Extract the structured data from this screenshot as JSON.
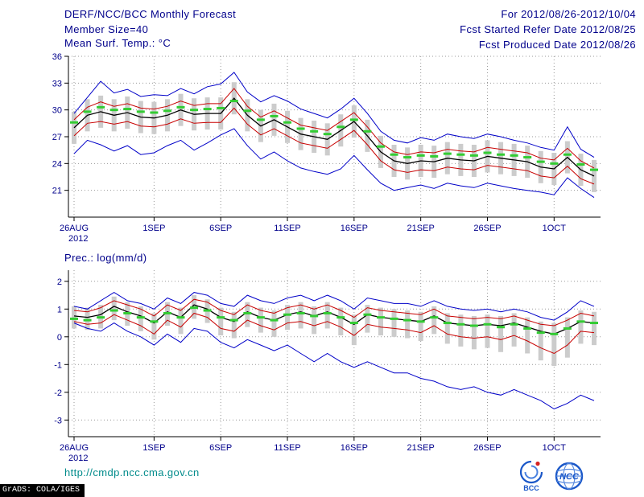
{
  "header": {
    "title": "DERF/NCC/BCC Monthly Forecast",
    "member_size": "Member Size=40",
    "for_range": "For 2012/08/26-2012/10/04",
    "fcst_started": "Fcst Started Refer Date 2012/08/25",
    "fcst_produced": "Fcst Produced Date 2012/08/26"
  },
  "footer": {
    "url": "http://cmdp.ncc.cma.gov.cn",
    "grads_credit": "GrADS: COLA/IGES",
    "logos": [
      {
        "label": "BCC"
      },
      {
        "label": "NCC"
      }
    ]
  },
  "colors": {
    "header_text": "#00008B",
    "tick_text": "#00008B",
    "url_text": "#008B8B",
    "envelope_line": "#0000C8",
    "std_line": "#C80000",
    "mean_line": "#000000",
    "climatology_dash": "#33CC33",
    "spread_bar": "#CCCCCC",
    "grid": "#999999",
    "axis": "#000000"
  },
  "chart_data": [
    {
      "type": "line",
      "title": "Mean Surf. Temp.: °C",
      "n_points": 40,
      "x_tick_labels": [
        "26AUG",
        "1SEP",
        "6SEP",
        "11SEP",
        "16SEP",
        "21SEP",
        "26SEP",
        "1OCT"
      ],
      "x_tick_indices": [
        0,
        6,
        11,
        16,
        21,
        26,
        31,
        36
      ],
      "x_year_label": "2012",
      "y_ticks": [
        36,
        33,
        30,
        27,
        24,
        21
      ],
      "ylim": [
        18,
        36
      ],
      "grid": true,
      "series": [
        {
          "name": "ensemble-max",
          "color": "#0000C8",
          "width": 1,
          "values": [
            29.6,
            31.4,
            33.2,
            31.9,
            32.3,
            31.5,
            31.7,
            31.6,
            32.4,
            31.8,
            32.6,
            32.9,
            34.2,
            32.0,
            30.9,
            31.6,
            31.0,
            30.1,
            29.6,
            29.1,
            30.1,
            31.3,
            29.6,
            27.6,
            26.6,
            26.3,
            26.9,
            26.6,
            27.3,
            27.0,
            26.8,
            27.3,
            27.0,
            26.6,
            26.3,
            25.8,
            25.5,
            28.1,
            25.6,
            24.7
          ]
        },
        {
          "name": "upper-std",
          "color": "#C80000",
          "width": 1,
          "values": [
            28.9,
            30.3,
            30.9,
            30.4,
            30.7,
            30.2,
            30.1,
            30.4,
            31.0,
            30.5,
            30.7,
            30.7,
            32.4,
            30.4,
            29.2,
            29.9,
            29.1,
            28.3,
            28.0,
            27.7,
            28.7,
            29.7,
            28.1,
            26.3,
            25.3,
            25.0,
            25.3,
            25.2,
            25.6,
            25.4,
            25.3,
            25.8,
            25.6,
            25.4,
            25.2,
            24.6,
            24.4,
            25.7,
            24.3,
            23.5
          ]
        },
        {
          "name": "ensemble-mean",
          "color": "#000000",
          "width": 1.3,
          "values": [
            28.0,
            29.4,
            29.8,
            29.4,
            29.7,
            29.2,
            29.1,
            29.4,
            30.0,
            29.5,
            29.6,
            29.6,
            31.3,
            29.4,
            28.2,
            28.9,
            28.1,
            27.3,
            27.0,
            26.7,
            27.7,
            28.7,
            27.1,
            25.3,
            24.3,
            24.0,
            24.3,
            24.2,
            24.6,
            24.4,
            24.3,
            24.8,
            24.6,
            24.4,
            24.2,
            23.6,
            23.4,
            24.7,
            23.3,
            22.6
          ]
        },
        {
          "name": "lower-std",
          "color": "#C80000",
          "width": 1,
          "values": [
            27.1,
            28.5,
            28.7,
            28.4,
            28.7,
            28.2,
            28.1,
            28.4,
            29.0,
            28.5,
            28.6,
            28.6,
            30.2,
            28.4,
            27.2,
            27.9,
            27.1,
            26.3,
            26.0,
            25.7,
            26.7,
            27.7,
            26.1,
            24.3,
            23.3,
            23.0,
            23.3,
            23.2,
            23.6,
            23.4,
            23.3,
            23.8,
            23.6,
            23.4,
            23.2,
            22.6,
            22.4,
            23.7,
            22.3,
            21.7
          ]
        },
        {
          "name": "ensemble-min",
          "color": "#0000C8",
          "width": 1,
          "values": [
            25.1,
            26.6,
            26.1,
            25.4,
            26.0,
            25.0,
            25.2,
            26.0,
            26.6,
            25.5,
            26.3,
            27.2,
            27.9,
            26.0,
            24.5,
            25.3,
            24.3,
            23.5,
            23.1,
            22.8,
            23.4,
            24.9,
            23.3,
            21.8,
            21.0,
            21.3,
            21.6,
            21.2,
            21.8,
            21.5,
            21.3,
            21.8,
            21.5,
            21.2,
            21.0,
            20.8,
            20.5,
            22.4,
            21.2,
            20.2
          ]
        }
      ],
      "climatology_dashes": {
        "name": "climatology",
        "color": "#33CC33",
        "values": [
          28.6,
          29.8,
          30.3,
          30.0,
          30.1,
          29.8,
          29.7,
          29.9,
          30.3,
          30.0,
          30.1,
          30.2,
          31.0,
          29.9,
          28.9,
          29.3,
          28.6,
          27.9,
          27.6,
          27.3,
          28.1,
          28.9,
          27.6,
          25.9,
          25.0,
          24.7,
          24.9,
          24.8,
          25.1,
          25.0,
          24.9,
          25.2,
          25.0,
          24.9,
          24.7,
          24.2,
          24.0,
          25.0,
          23.9,
          23.3
        ]
      },
      "spread_bars": {
        "name": "ensemble-spread",
        "color": "#CCCCCC",
        "high": [
          29.8,
          31.2,
          31.6,
          31.2,
          31.5,
          31.0,
          30.9,
          31.2,
          31.8,
          31.3,
          31.4,
          31.4,
          33.1,
          31.2,
          30.0,
          30.7,
          29.9,
          29.1,
          28.8,
          28.5,
          29.5,
          30.5,
          28.9,
          27.1,
          26.1,
          25.8,
          26.1,
          26.0,
          26.4,
          26.2,
          26.1,
          26.6,
          26.4,
          26.2,
          26.0,
          25.4,
          25.2,
          26.5,
          25.1,
          24.4
        ],
        "low": [
          26.2,
          27.6,
          28.0,
          27.6,
          27.9,
          27.4,
          27.3,
          27.6,
          28.2,
          27.7,
          27.8,
          27.8,
          29.5,
          27.6,
          26.4,
          27.1,
          26.3,
          25.5,
          25.2,
          24.9,
          25.9,
          26.9,
          25.3,
          23.5,
          22.5,
          22.2,
          22.5,
          22.4,
          22.8,
          22.6,
          22.5,
          23.0,
          22.8,
          22.6,
          22.4,
          21.8,
          21.6,
          22.9,
          21.5,
          20.8
        ]
      }
    },
    {
      "type": "line",
      "title": "Prec.: log(mm/d)",
      "n_points": 40,
      "x_tick_labels": [
        "26AUG",
        "1SEP",
        "6SEP",
        "11SEP",
        "16SEP",
        "21SEP",
        "26SEP",
        "1OCT"
      ],
      "x_tick_indices": [
        0,
        6,
        11,
        16,
        21,
        26,
        31,
        36
      ],
      "x_year_label": "2012",
      "y_ticks": [
        2,
        1,
        0,
        -1,
        -2,
        -3
      ],
      "ylim": [
        -3.6,
        2.4
      ],
      "grid": true,
      "series": [
        {
          "name": "ensemble-max",
          "color": "#0000C8",
          "width": 1,
          "values": [
            1.1,
            1.0,
            1.3,
            1.6,
            1.3,
            1.2,
            1.0,
            1.4,
            1.2,
            1.6,
            1.5,
            1.2,
            1.1,
            1.5,
            1.3,
            1.2,
            1.4,
            1.5,
            1.3,
            1.5,
            1.3,
            1.0,
            1.4,
            1.3,
            1.2,
            1.2,
            1.1,
            1.3,
            1.1,
            1.0,
            0.95,
            1.0,
            0.9,
            1.0,
            0.9,
            0.7,
            0.6,
            0.9,
            1.3,
            1.1
          ]
        },
        {
          "name": "upper-std",
          "color": "#C80000",
          "width": 1,
          "values": [
            0.95,
            0.9,
            1.05,
            1.3,
            1.15,
            1.0,
            0.75,
            1.15,
            0.95,
            1.35,
            1.25,
            0.95,
            0.8,
            1.15,
            0.95,
            0.85,
            1.05,
            1.15,
            1.0,
            1.15,
            0.95,
            0.7,
            1.05,
            0.95,
            0.9,
            0.85,
            0.8,
            1.0,
            0.75,
            0.7,
            0.65,
            0.7,
            0.65,
            0.75,
            0.6,
            0.45,
            0.4,
            0.6,
            0.85,
            0.75
          ]
        },
        {
          "name": "ensemble-mean",
          "color": "#000000",
          "width": 1.3,
          "values": [
            0.75,
            0.7,
            0.8,
            1.1,
            0.9,
            0.75,
            0.5,
            0.9,
            0.7,
            1.15,
            1.0,
            0.7,
            0.55,
            0.9,
            0.7,
            0.6,
            0.8,
            0.9,
            0.75,
            0.9,
            0.7,
            0.45,
            0.8,
            0.7,
            0.65,
            0.6,
            0.55,
            0.75,
            0.5,
            0.45,
            0.4,
            0.45,
            0.4,
            0.5,
            0.35,
            0.2,
            0.1,
            0.3,
            0.55,
            0.5
          ]
        },
        {
          "name": "lower-std",
          "color": "#C80000",
          "width": 1,
          "values": [
            0.55,
            0.45,
            0.5,
            0.8,
            0.6,
            0.4,
            0.1,
            0.6,
            0.35,
            0.85,
            0.7,
            0.3,
            0.2,
            0.6,
            0.4,
            0.25,
            0.5,
            0.55,
            0.4,
            0.55,
            0.35,
            0.05,
            0.45,
            0.35,
            0.3,
            0.25,
            0.15,
            0.4,
            0.1,
            0.0,
            -0.05,
            0.0,
            -0.1,
            0.05,
            -0.15,
            -0.4,
            -0.6,
            -0.3,
            0.2,
            0.15
          ]
        },
        {
          "name": "ensemble-min",
          "color": "#0000C8",
          "width": 1,
          "values": [
            0.5,
            0.3,
            0.2,
            0.5,
            0.2,
            0.0,
            -0.3,
            0.1,
            -0.2,
            0.3,
            0.2,
            -0.2,
            -0.4,
            -0.1,
            -0.3,
            -0.5,
            -0.3,
            -0.6,
            -0.9,
            -0.6,
            -0.9,
            -1.1,
            -0.9,
            -1.1,
            -1.3,
            -1.3,
            -1.5,
            -1.6,
            -1.8,
            -1.9,
            -1.8,
            -2.0,
            -2.1,
            -1.9,
            -2.1,
            -2.3,
            -2.6,
            -2.4,
            -2.1,
            -2.3
          ]
        }
      ],
      "climatology_dashes": {
        "name": "climatology",
        "color": "#33CC33",
        "values": [
          0.65,
          0.6,
          0.7,
          0.95,
          0.85,
          0.7,
          0.55,
          0.85,
          0.7,
          1.05,
          0.95,
          0.7,
          0.6,
          0.85,
          0.7,
          0.6,
          0.8,
          0.85,
          0.75,
          0.85,
          0.7,
          0.5,
          0.8,
          0.7,
          0.65,
          0.6,
          0.55,
          0.7,
          0.5,
          0.45,
          0.4,
          0.45,
          0.35,
          0.45,
          0.3,
          0.15,
          0.1,
          0.3,
          0.55,
          0.5
        ]
      },
      "spread_bars": {
        "name": "ensemble-spread",
        "color": "#CCCCCC",
        "high": [
          1.1,
          1.05,
          1.15,
          1.45,
          1.25,
          1.1,
          0.85,
          1.25,
          1.05,
          1.5,
          1.35,
          1.05,
          0.9,
          1.25,
          1.05,
          0.95,
          1.15,
          1.25,
          1.1,
          1.25,
          1.05,
          0.8,
          1.15,
          1.05,
          1.0,
          0.95,
          0.9,
          1.1,
          0.85,
          0.8,
          0.75,
          0.8,
          0.75,
          0.85,
          0.7,
          0.55,
          0.5,
          0.7,
          0.95,
          0.9
        ],
        "low": [
          0.3,
          0.25,
          0.3,
          0.6,
          0.4,
          0.2,
          -0.1,
          0.4,
          0.1,
          0.65,
          0.5,
          0.05,
          -0.05,
          0.35,
          0.15,
          0.0,
          0.25,
          0.3,
          0.1,
          0.3,
          0.05,
          -0.3,
          0.15,
          0.05,
          0.0,
          -0.05,
          -0.15,
          0.1,
          -0.25,
          -0.35,
          -0.45,
          -0.4,
          -0.55,
          -0.35,
          -0.6,
          -0.85,
          -1.05,
          -0.75,
          -0.25,
          -0.3
        ]
      }
    }
  ]
}
